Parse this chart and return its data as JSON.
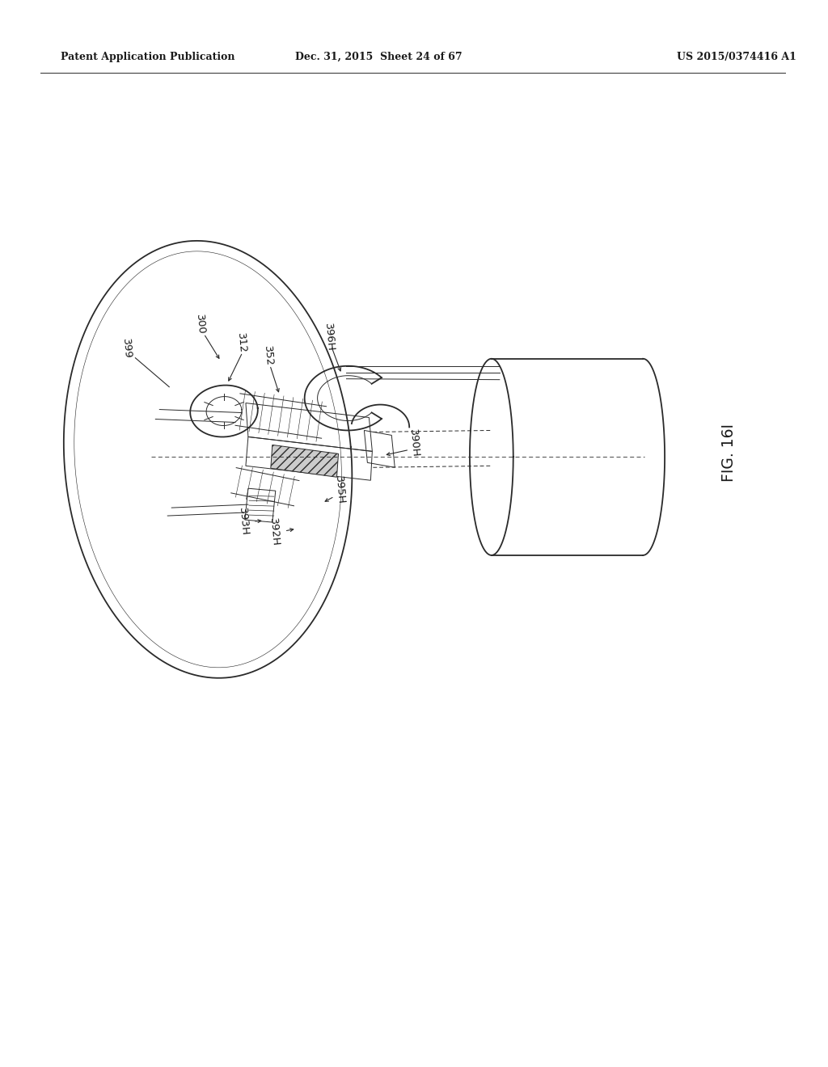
{
  "bg_color": "#ffffff",
  "line_color": "#2a2a2a",
  "text_color": "#1a1a1a",
  "header_left": "Patent Application Publication",
  "header_center": "Dec. 31, 2015  Sheet 24 of 67",
  "header_right": "US 2015/0374416 A1",
  "fig_label": "FIG. 16I",
  "lw_main": 1.3,
  "lw_thin": 0.7,
  "lw_vt": 0.4,
  "label_fontsize": 9.5,
  "header_fontsize": 9.0,
  "figlabel_fontsize": 13.5
}
